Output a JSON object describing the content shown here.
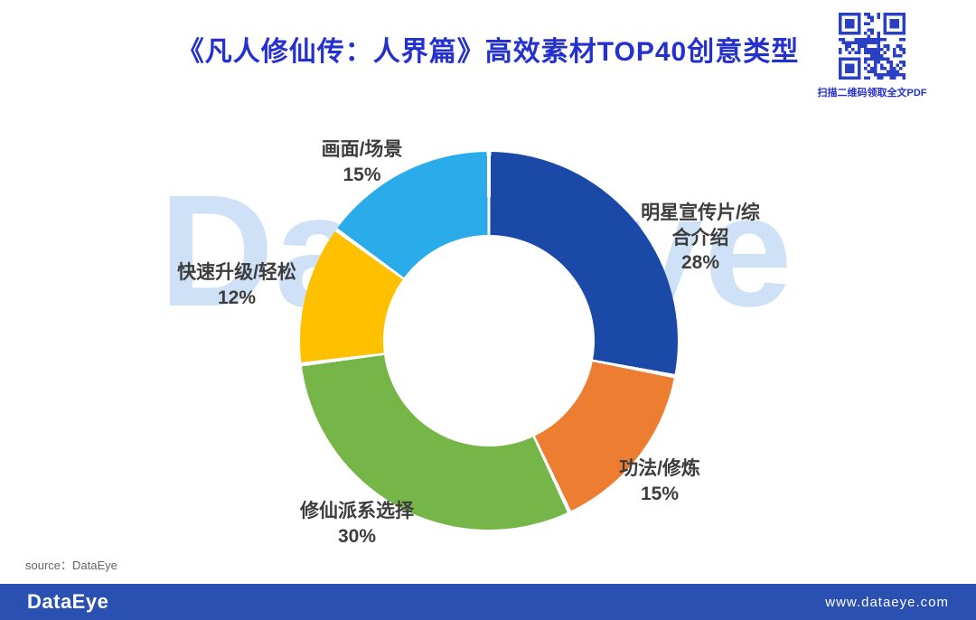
{
  "header": {
    "qr_caption": "扫描二维码领取全文PDF"
  },
  "chart_data": {
    "type": "pie",
    "subtype": "donut",
    "title": "《凡人修仙传：人界篇》高效素材TOP40创意类型",
    "categories": [
      "明星宣传片/综合介绍",
      "功法/修炼",
      "修仙派系选择",
      "快速升级/轻松",
      "画面/场景"
    ],
    "values": [
      28,
      15,
      30,
      12,
      15
    ],
    "unit": "%",
    "percent_labels": [
      "28%",
      "15%",
      "30%",
      "12%",
      "15%"
    ],
    "colors": [
      "#1b49a8",
      "#ed7d31",
      "#76b648",
      "#ffc000",
      "#29ace9"
    ],
    "start_angle_deg": 0,
    "direction": "clockwise",
    "donut_hole_ratio": 0.56,
    "legend_position": "labels-around-slices",
    "grid": false
  },
  "watermark": {
    "text": "DataEye",
    "color": "#cfe1f6"
  },
  "source": {
    "text": "source：DataEye"
  },
  "footer": {
    "logo": "DataEye",
    "url": "www.dataeye.com",
    "background": "#2a50b2"
  }
}
